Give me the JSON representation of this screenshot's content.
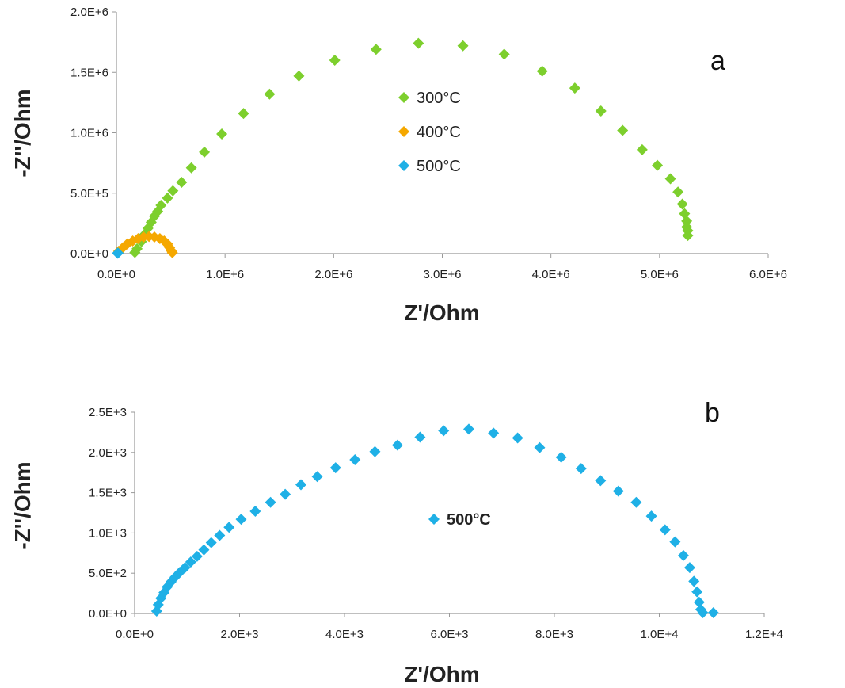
{
  "chart_data": [
    {
      "type": "scatter",
      "panel": "a",
      "xlabel": "Z'/Ohm",
      "ylabel": "-Z''/Ohm",
      "xlim": [
        0,
        6000000
      ],
      "ylim": [
        0,
        2000000
      ],
      "xticks": [
        "0.0E+0",
        "1.0E+6",
        "2.0E+6",
        "3.0E+6",
        "4.0E+6",
        "5.0E+6",
        "6.0E+6"
      ],
      "yticks": [
        "0.0E+0",
        "5.0E+5",
        "1.0E+6",
        "1.5E+6",
        "2.0E+6"
      ],
      "legend_position": "center",
      "series": [
        {
          "name": "300°C",
          "color": "#7dcf2d",
          "points": [
            [
              170000,
              10000
            ],
            [
              190000,
              40000
            ],
            [
              230000,
              100000
            ],
            [
              260000,
              160000
            ],
            [
              290000,
              210000
            ],
            [
              320000,
              260000
            ],
            [
              350000,
              310000
            ],
            [
              380000,
              350000
            ],
            [
              410000,
              400000
            ],
            [
              470000,
              460000
            ],
            [
              520000,
              520000
            ],
            [
              600000,
              590000
            ],
            [
              690000,
              710000
            ],
            [
              810000,
              840000
            ],
            [
              970000,
              990000
            ],
            [
              1170000,
              1160000
            ],
            [
              1410000,
              1320000
            ],
            [
              1680000,
              1470000
            ],
            [
              2010000,
              1600000
            ],
            [
              2390000,
              1690000
            ],
            [
              2780000,
              1740000
            ],
            [
              3190000,
              1720000
            ],
            [
              3570000,
              1650000
            ],
            [
              3920000,
              1510000
            ],
            [
              4220000,
              1370000
            ],
            [
              4460000,
              1180000
            ],
            [
              4660000,
              1020000
            ],
            [
              4840000,
              860000
            ],
            [
              4980000,
              730000
            ],
            [
              5100000,
              620000
            ],
            [
              5170000,
              510000
            ],
            [
              5210000,
              410000
            ],
            [
              5230000,
              330000
            ],
            [
              5250000,
              270000
            ],
            [
              5250000,
              220000
            ],
            [
              5260000,
              190000
            ],
            [
              5260000,
              150000
            ]
          ]
        },
        {
          "name": "400°C",
          "color": "#f5a800",
          "points": [
            [
              20000,
              20000
            ],
            [
              60000,
              50000
            ],
            [
              100000,
              80000
            ],
            [
              150000,
              105000
            ],
            [
              200000,
              125000
            ],
            [
              250000,
              138000
            ],
            [
              300000,
              142000
            ],
            [
              350000,
              138000
            ],
            [
              400000,
              125000
            ],
            [
              440000,
              105000
            ],
            [
              470000,
              80000
            ],
            [
              490000,
              50000
            ],
            [
              505000,
              25000
            ],
            [
              515000,
              8000
            ]
          ]
        },
        {
          "name": "500°C",
          "color": "#1fb0e6",
          "points": [
            [
              10000,
              3000
            ],
            [
              15000,
              5000
            ]
          ]
        }
      ]
    },
    {
      "type": "scatter",
      "panel": "b",
      "xlabel": "Z'/Ohm",
      "ylabel": "-Z''/Ohm",
      "xlim": [
        0,
        12000
      ],
      "ylim": [
        0,
        2500
      ],
      "xticks": [
        "0.0E+0",
        "2.0E+3",
        "4.0E+3",
        "6.0E+3",
        "8.0E+3",
        "1.0E+4",
        "1.2E+4"
      ],
      "yticks": [
        "0.0E+0",
        "5.0E+2",
        "1.0E+3",
        "1.5E+3",
        "2.0E+3",
        "2.5E+3"
      ],
      "legend_position": "center",
      "series": [
        {
          "name": "500°C",
          "color": "#1fb0e6",
          "points": [
            [
              420,
              30
            ],
            [
              450,
              110
            ],
            [
              500,
              190
            ],
            [
              560,
              260
            ],
            [
              620,
              330
            ],
            [
              690,
              390
            ],
            [
              770,
              450
            ],
            [
              860,
              510
            ],
            [
              960,
              570
            ],
            [
              1070,
              640
            ],
            [
              1190,
              710
            ],
            [
              1320,
              790
            ],
            [
              1460,
              880
            ],
            [
              1620,
              970
            ],
            [
              1800,
              1070
            ],
            [
              2030,
              1170
            ],
            [
              2300,
              1270
            ],
            [
              2590,
              1380
            ],
            [
              2870,
              1480
            ],
            [
              3170,
              1600
            ],
            [
              3480,
              1700
            ],
            [
              3830,
              1810
            ],
            [
              4200,
              1910
            ],
            [
              4580,
              2010
            ],
            [
              5010,
              2090
            ],
            [
              5440,
              2190
            ],
            [
              5890,
              2270
            ],
            [
              6370,
              2290
            ],
            [
              6840,
              2240
            ],
            [
              7300,
              2180
            ],
            [
              7720,
              2060
            ],
            [
              8130,
              1940
            ],
            [
              8510,
              1800
            ],
            [
              8880,
              1650
            ],
            [
              9220,
              1520
            ],
            [
              9560,
              1380
            ],
            [
              9850,
              1210
            ],
            [
              10110,
              1040
            ],
            [
              10300,
              890
            ],
            [
              10460,
              720
            ],
            [
              10580,
              570
            ],
            [
              10660,
              400
            ],
            [
              10720,
              270
            ],
            [
              10760,
              140
            ],
            [
              10790,
              50
            ],
            [
              10830,
              10
            ],
            [
              11030,
              10
            ]
          ]
        }
      ]
    }
  ]
}
